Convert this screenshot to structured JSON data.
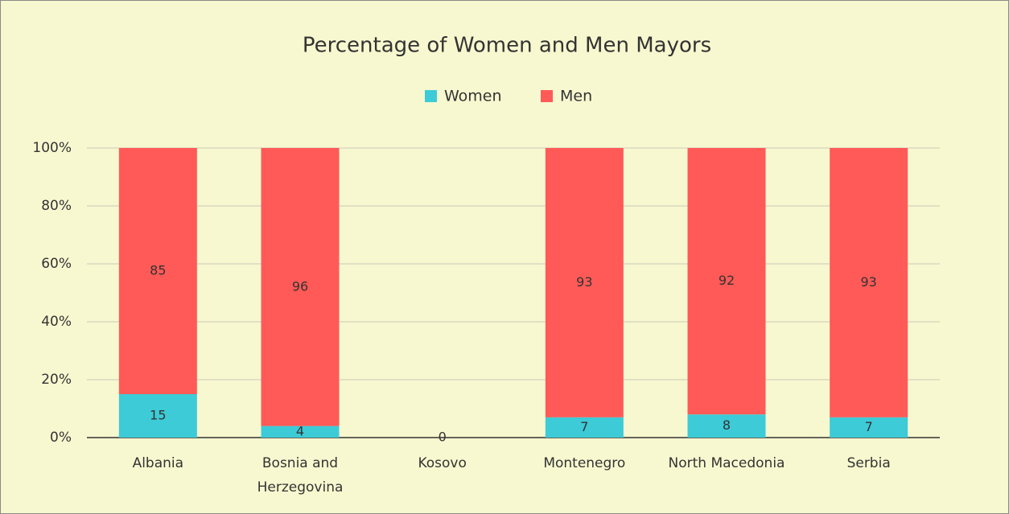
{
  "chart_data": {
    "type": "stacked_bar",
    "title": "Percentage of Women and Men Mayors",
    "categories": [
      "Albania",
      "Bosnia and Herzegovina",
      "Kosovo",
      "Montenegro",
      "North Macedonia",
      "Serbia"
    ],
    "series": [
      {
        "name": "Women",
        "color": "#3ccbd7",
        "values": [
          15,
          4,
          0,
          7,
          8,
          7
        ]
      },
      {
        "name": "Men",
        "color": "#ff5a57",
        "values": [
          85,
          96,
          null,
          93,
          92,
          93
        ]
      }
    ],
    "ylim": [
      0,
      100
    ],
    "yticks": [
      {
        "value": 0,
        "label": "0%"
      },
      {
        "value": 20,
        "label": "20%"
      },
      {
        "value": 40,
        "label": "40%"
      },
      {
        "value": 60,
        "label": "60%"
      },
      {
        "value": 80,
        "label": "80%"
      },
      {
        "value": 100,
        "label": "100%"
      }
    ],
    "grid": true
  }
}
